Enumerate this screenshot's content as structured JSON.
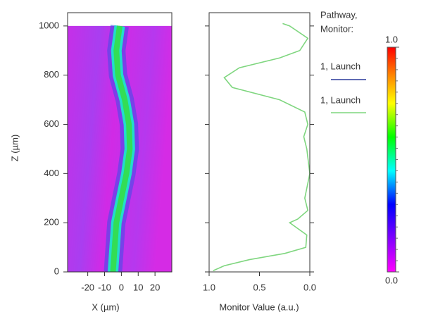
{
  "chart_data": [
    {
      "type": "field",
      "x_label": "X (µm)",
      "y_label": "Z (µm)",
      "xlim": [
        -32,
        30
      ],
      "xticks": [
        -20,
        -10,
        0,
        10,
        20
      ],
      "ylim": [
        0,
        1054
      ],
      "yticks": [
        0,
        200,
        400,
        600,
        800,
        1000
      ],
      "z": [
        0,
        100,
        200,
        300,
        400,
        500,
        600,
        700,
        800,
        900,
        1000
      ],
      "beam_color": "#33dd55",
      "series": [
        {
          "name": "1, Launch",
          "color": "#2a3a9c",
          "values": [
            -5,
            -4,
            -3,
            0,
            3,
            5,
            4.5,
            2,
            -2,
            -3,
            -1
          ]
        }
      ],
      "colorbar": {
        "lim": [
          0,
          1
        ],
        "ticks": [
          {
            "value": 0,
            "label": "0.0"
          },
          {
            "value": 1,
            "label": "1.0"
          }
        ]
      },
      "legend_title": [
        "Pathway,",
        "Monitor:"
      ]
    },
    {
      "type": "line",
      "x_label": "Monitor Value (a.u.)",
      "xlim": [
        1,
        0
      ],
      "xticks": [
        {
          "value": 1,
          "label": "1.0"
        },
        0.5,
        {
          "value": 0,
          "label": "0.0"
        }
      ],
      "ylim": [
        0,
        1054
      ],
      "yticks": [
        0,
        200,
        400,
        600,
        800,
        1000
      ],
      "x": [
        5,
        25,
        50,
        75,
        100,
        150,
        200,
        215,
        250,
        300,
        400,
        500,
        550,
        600,
        650,
        700,
        750,
        790,
        830,
        870,
        900,
        950,
        1000,
        1010
      ],
      "series": [
        {
          "name": "1, Launch",
          "color": "#7fd67f",
          "values": [
            0.96,
            0.85,
            0.6,
            0.25,
            0.04,
            0.03,
            0.2,
            0.12,
            0.02,
            0.05,
            0.0,
            0.03,
            0.06,
            0.02,
            0.05,
            0.3,
            0.77,
            0.85,
            0.7,
            0.3,
            0.1,
            0.02,
            0.2,
            0.27
          ]
        }
      ]
    }
  ]
}
